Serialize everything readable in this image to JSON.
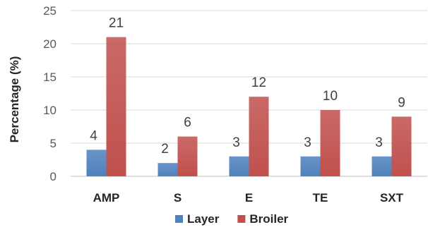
{
  "chart_data": {
    "type": "bar",
    "title": "",
    "xlabel": "",
    "ylabel": "Percentage (%)",
    "categories": [
      "AMP",
      "S",
      "E",
      "TE",
      "SXT"
    ],
    "series": [
      {
        "name": "Layer",
        "values": [
          4,
          2,
          3,
          3,
          3
        ],
        "color": "#4f81bd"
      },
      {
        "name": "Broiler",
        "values": [
          21,
          6,
          12,
          10,
          9
        ],
        "color": "#c0504d"
      }
    ],
    "ylim": [
      0,
      25
    ],
    "yticks": [
      0,
      5,
      10,
      15,
      20,
      25
    ],
    "grid": true,
    "legend": "bottom"
  }
}
